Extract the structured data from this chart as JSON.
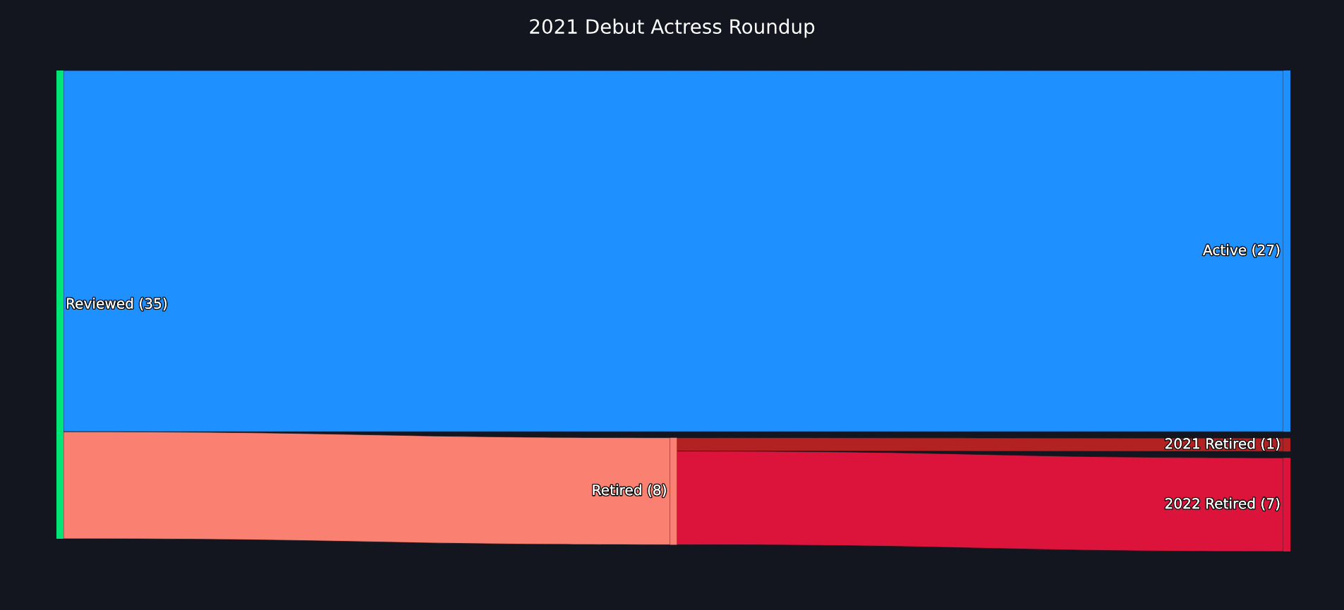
{
  "chart_data": {
    "type": "other",
    "title": "2021 Debut Actress Roundup",
    "categories": [
      "Reviewed",
      "Active",
      "Retired",
      "2021 Retired",
      "2022 Retired"
    ],
    "values": [
      35,
      27,
      8,
      1,
      7
    ],
    "value_labels": [
      "(35)",
      "(27)",
      "(8)",
      "(1)",
      "(7)"
    ],
    "colors": [
      "#00e676",
      "#1e90ff",
      "#fa8072",
      "#b22222",
      "#dc143c"
    ],
    "cells": [
      [
        null,
        true,
        true,
        null,
        null
      ],
      [
        null,
        null,
        null,
        null,
        null
      ],
      [
        null,
        null,
        null,
        true,
        true
      ],
      [
        null,
        null,
        null,
        null,
        null
      ],
      [
        null,
        null,
        null,
        null,
        null
      ]
    ]
  }
}
